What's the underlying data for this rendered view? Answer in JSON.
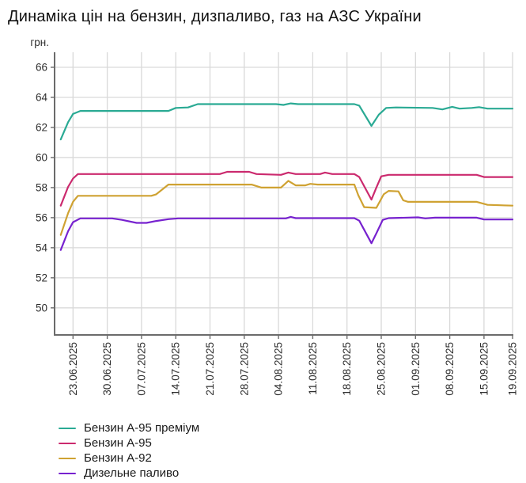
{
  "title": "Динаміка цін на бензин, дизпаливо, газ на АЗС України",
  "colors": {
    "grid": "#d9d9d9",
    "axis": "#6b6b6b",
    "tick_text": "#2e2e2e",
    "title_text": "#111111"
  },
  "chart_data": {
    "type": "line",
    "title": "Динаміка цін на бензин, дизпаливо, газ на АЗС України",
    "ylabel": "грн.",
    "xlabel": "",
    "grid": true,
    "legend_position": "bottom-left",
    "y_ticks": [
      50,
      52,
      54,
      56,
      58,
      60,
      62,
      64,
      66
    ],
    "ylim": [
      48.2,
      67.0
    ],
    "x_ticks": [
      {
        "label": "23.06.2025",
        "day": 0
      },
      {
        "label": "30.06.2025",
        "day": 7
      },
      {
        "label": "07.07.2025",
        "day": 14
      },
      {
        "label": "14.07.2025",
        "day": 21
      },
      {
        "label": "21.07.2025",
        "day": 28
      },
      {
        "label": "28.07.2025",
        "day": 35
      },
      {
        "label": "04.08.2025",
        "day": 42
      },
      {
        "label": "11.08.2025",
        "day": 49
      },
      {
        "label": "18.08.2025",
        "day": 56
      },
      {
        "label": "25.08.2025",
        "day": 63
      },
      {
        "label": "01.09.2025",
        "day": 70
      },
      {
        "label": "08.09.2025",
        "day": 77
      },
      {
        "label": "15.09.2025",
        "day": 84
      },
      {
        "label": "19.09.2025",
        "day": 88
      }
    ],
    "series": [
      {
        "name": "Бензин А-95 преміум",
        "color": "#2aaa94",
        "points": [
          [
            -2.5,
            61.2
          ],
          [
            -1,
            62.35
          ],
          [
            0,
            62.9
          ],
          [
            1.5,
            63.1
          ],
          [
            19.5,
            63.1
          ],
          [
            21,
            63.3
          ],
          [
            23.5,
            63.33
          ],
          [
            25.5,
            63.55
          ],
          [
            41.5,
            63.55
          ],
          [
            43,
            63.5
          ],
          [
            44.5,
            63.6
          ],
          [
            46,
            63.55
          ],
          [
            57.5,
            63.55
          ],
          [
            58.5,
            63.45
          ],
          [
            61,
            62.1
          ],
          [
            62.5,
            62.85
          ],
          [
            64,
            63.3
          ],
          [
            66,
            63.33
          ],
          [
            73.5,
            63.3
          ],
          [
            75.5,
            63.2
          ],
          [
            77.5,
            63.37
          ],
          [
            79,
            63.25
          ],
          [
            81.5,
            63.3
          ],
          [
            83,
            63.35
          ],
          [
            84.5,
            63.25
          ],
          [
            88,
            63.25
          ]
        ]
      },
      {
        "name": "Бензин А-95",
        "color": "#cb2a6e",
        "points": [
          [
            -2.5,
            56.8
          ],
          [
            -1,
            58.05
          ],
          [
            0,
            58.6
          ],
          [
            1,
            58.9
          ],
          [
            30,
            58.9
          ],
          [
            31.5,
            59.05
          ],
          [
            36,
            59.05
          ],
          [
            37.5,
            58.9
          ],
          [
            42.5,
            58.85
          ],
          [
            44,
            59.0
          ],
          [
            45.5,
            58.9
          ],
          [
            50.5,
            58.9
          ],
          [
            51.5,
            59.0
          ],
          [
            53,
            58.9
          ],
          [
            57.5,
            58.9
          ],
          [
            58.5,
            58.7
          ],
          [
            61,
            57.2
          ],
          [
            62,
            58.0
          ],
          [
            63,
            58.75
          ],
          [
            64.5,
            58.85
          ],
          [
            82.5,
            58.85
          ],
          [
            84,
            58.7
          ],
          [
            88,
            58.7
          ]
        ]
      },
      {
        "name": "Бензин А-92",
        "color": "#cfa232",
        "points": [
          [
            -2.5,
            54.85
          ],
          [
            -1,
            56.3
          ],
          [
            0,
            57.05
          ],
          [
            1,
            57.45
          ],
          [
            16,
            57.45
          ],
          [
            17,
            57.55
          ],
          [
            19.5,
            58.2
          ],
          [
            36.5,
            58.2
          ],
          [
            38.5,
            58.0
          ],
          [
            42.5,
            58.0
          ],
          [
            44,
            58.45
          ],
          [
            45.5,
            58.15
          ],
          [
            47.5,
            58.15
          ],
          [
            48.5,
            58.25
          ],
          [
            50,
            58.2
          ],
          [
            57.5,
            58.2
          ],
          [
            58.3,
            57.5
          ],
          [
            59.5,
            56.7
          ],
          [
            62,
            56.65
          ],
          [
            63.5,
            57.55
          ],
          [
            64.5,
            57.78
          ],
          [
            66.5,
            57.75
          ],
          [
            67.5,
            57.15
          ],
          [
            68.5,
            57.05
          ],
          [
            82.5,
            57.05
          ],
          [
            84.5,
            56.85
          ],
          [
            88,
            56.8
          ]
        ]
      },
      {
        "name": "Дизельне паливо",
        "color": "#7722cf",
        "points": [
          [
            -2.5,
            53.85
          ],
          [
            -1,
            55.1
          ],
          [
            0,
            55.7
          ],
          [
            1.5,
            55.95
          ],
          [
            8,
            55.95
          ],
          [
            10,
            55.85
          ],
          [
            13,
            55.65
          ],
          [
            15,
            55.65
          ],
          [
            17,
            55.78
          ],
          [
            19.5,
            55.9
          ],
          [
            21.5,
            55.95
          ],
          [
            43.5,
            55.95
          ],
          [
            44.5,
            56.05
          ],
          [
            45.5,
            55.97
          ],
          [
            57.5,
            55.97
          ],
          [
            58.5,
            55.8
          ],
          [
            61,
            54.3
          ],
          [
            62,
            54.95
          ],
          [
            63.3,
            55.85
          ],
          [
            64.5,
            55.97
          ],
          [
            70.5,
            56.02
          ],
          [
            72,
            55.95
          ],
          [
            74,
            56.0
          ],
          [
            82.5,
            56.0
          ],
          [
            84,
            55.88
          ],
          [
            88,
            55.88
          ]
        ]
      }
    ]
  }
}
